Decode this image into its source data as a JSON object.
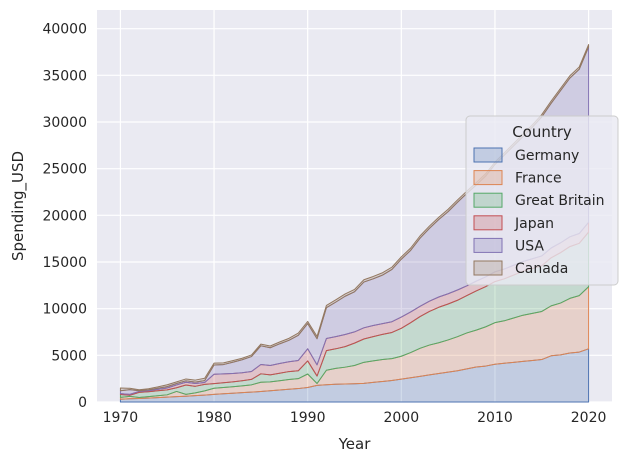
{
  "chart_data": {
    "type": "area",
    "stacked": true,
    "xlabel": "Year",
    "ylabel": "Spending_USD",
    "xlim": [
      1967.5,
      2022.5
    ],
    "ylim": [
      0,
      42000
    ],
    "xticks": [
      1970,
      1980,
      1990,
      2000,
      2010,
      2020
    ],
    "yticks": [
      0,
      5000,
      10000,
      15000,
      20000,
      25000,
      30000,
      35000,
      40000
    ],
    "grid": true,
    "legend": {
      "title": "Country",
      "placement": "center-right"
    },
    "x": [
      1970,
      1971,
      1972,
      1973,
      1974,
      1975,
      1976,
      1977,
      1978,
      1979,
      1980,
      1981,
      1982,
      1983,
      1984,
      1985,
      1986,
      1987,
      1988,
      1989,
      1990,
      1991,
      1992,
      1993,
      1994,
      1995,
      1996,
      1997,
      1998,
      1999,
      2000,
      2001,
      2002,
      2003,
      2004,
      2005,
      2006,
      2007,
      2008,
      2009,
      2010,
      2011,
      2012,
      2013,
      2014,
      2015,
      2016,
      2017,
      2018,
      2019,
      2020
    ],
    "series": [
      {
        "name": "Germany",
        "color": "#4c72b0",
        "values": [
          300,
          350,
          380,
          420,
          470,
          520,
          580,
          620,
          680,
          740,
          820,
          880,
          940,
          1000,
          1060,
          1120,
          1200,
          1280,
          1360,
          1440,
          1550,
          1780,
          1850,
          1900,
          1930,
          1960,
          2000,
          2100,
          2200,
          2300,
          2450,
          2600,
          2750,
          2900,
          3050,
          3200,
          3350,
          3550,
          3750,
          3850,
          4050,
          4150,
          4250,
          4350,
          4450,
          4550,
          4950,
          5050,
          5250,
          5350,
          5700
        ]
      },
      {
        "name": "France",
        "color": "#dd8452",
        "values": [
          200,
          250,
          100,
          150,
          200,
          250,
          550,
          200,
          300,
          450,
          650,
          680,
          700,
          730,
          780,
          1000,
          960,
          1000,
          1050,
          1060,
          1450,
          200,
          1550,
          1700,
          1800,
          1950,
          2250,
          2300,
          2350,
          2350,
          2450,
          2700,
          3000,
          3200,
          3300,
          3450,
          3650,
          3850,
          3950,
          4200,
          4450,
          4550,
          4750,
          4950,
          5050,
          5150,
          5350,
          5550,
          5850,
          6050,
          6650
        ]
      },
      {
        "name": "Great Britain",
        "color": "#55a868",
        "values": [
          300,
          120,
          550,
          530,
          530,
          530,
          400,
          1000,
          700,
          700,
          500,
          500,
          520,
          550,
          580,
          900,
          750,
          800,
          850,
          850,
          1400,
          800,
          2100,
          2100,
          2200,
          2400,
          2500,
          2600,
          2700,
          2800,
          3000,
          3200,
          3400,
          3600,
          3800,
          3850,
          3900,
          4000,
          4200,
          4300,
          4400,
          4500,
          4600,
          4700,
          4800,
          4900,
          5150,
          5400,
          5550,
          5600,
          5850
        ]
      },
      {
        "name": "Japan",
        "color": "#c44e52",
        "values": [
          100,
          100,
          100,
          100,
          150,
          200,
          300,
          300,
          300,
          200,
          1000,
          950,
          900,
          850,
          850,
          1000,
          1000,
          1050,
          1050,
          1100,
          1300,
          1200,
          1300,
          1300,
          1300,
          1200,
          1200,
          1200,
          1150,
          1150,
          1200,
          1150,
          1100,
          1100,
          1100,
          1100,
          1100,
          1050,
          1050,
          1050,
          1050,
          1050,
          1050,
          1050,
          1050,
          1050,
          1050,
          1050,
          1050,
          1050,
          1050
        ]
      },
      {
        "name": "USA",
        "color": "#8172b3",
        "values": [
          300,
          500,
          80,
          100,
          120,
          150,
          150,
          150,
          150,
          200,
          1000,
          1000,
          1200,
          1400,
          1600,
          2000,
          1900,
          2100,
          2300,
          2700,
          2700,
          2800,
          3300,
          3700,
          4100,
          4300,
          4900,
          5000,
          5200,
          5600,
          6200,
          6600,
          7300,
          7800,
          8300,
          8800,
          9400,
          9900,
          10300,
          10800,
          11500,
          12200,
          12800,
          13400,
          14100,
          14900,
          15500,
          16300,
          17000,
          17600,
          18800
        ]
      },
      {
        "name": "Canada",
        "color": "#937860",
        "values": [
          300,
          150,
          100,
          120,
          150,
          200,
          180,
          200,
          220,
          250,
          200,
          180,
          170,
          160,
          170,
          180,
          190,
          200,
          210,
          230,
          230,
          250,
          250,
          250,
          250,
          250,
          250,
          250,
          250,
          250,
          250,
          250,
          250,
          250,
          250,
          250,
          250,
          250,
          250,
          250,
          250,
          250,
          250,
          250,
          250,
          250,
          250,
          250,
          250,
          250,
          250
        ]
      }
    ]
  }
}
